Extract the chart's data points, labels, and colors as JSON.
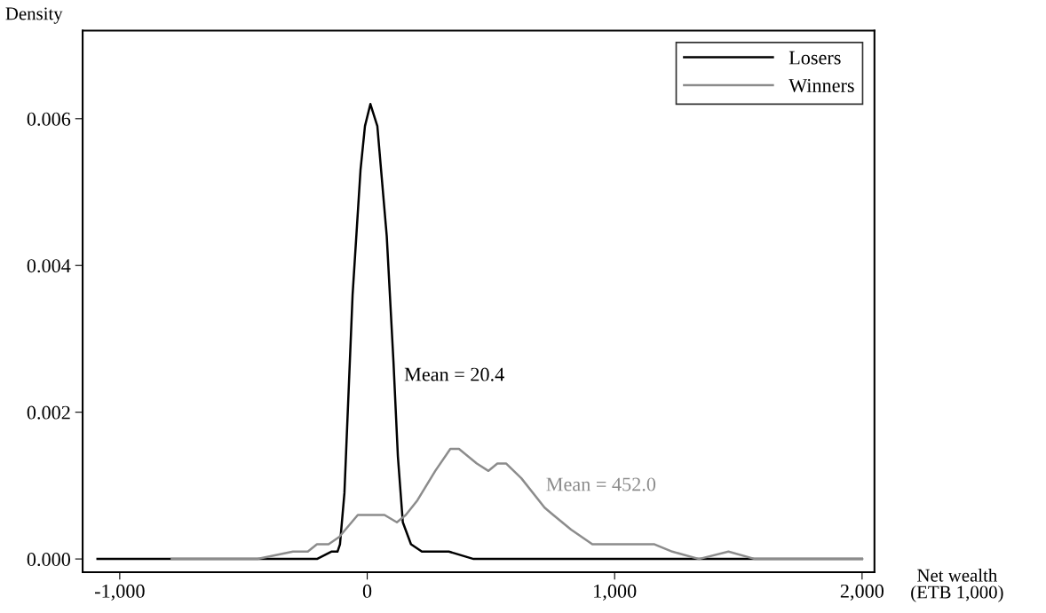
{
  "chart_data": {
    "type": "line",
    "xlabel": "Net wealth\n(ETB 1,000)",
    "ylabel": "Density",
    "xlim": [
      -1150,
      2050
    ],
    "ylim": [
      -0.00018,
      0.0072
    ],
    "xticks": [
      {
        "value": -1000,
        "label": "-1,000"
      },
      0,
      {
        "value": 1000,
        "label": "1,000"
      },
      {
        "value": 2000,
        "label": "2,000"
      }
    ],
    "yticks": [
      {
        "value": 0,
        "label": "0.000"
      },
      0.002,
      0.004,
      0.006
    ],
    "grid": false,
    "legend": "top right",
    "marker": "none",
    "line_style": "solid",
    "annotations": [
      "Mean = 20.4",
      "Mean = 452.0"
    ],
    "series": [
      {
        "name": "Losers",
        "color": "#000000",
        "x": [
          -1090,
          -800,
          -400,
          -325,
          -203,
          -145,
          -120,
          -110,
          -92,
          -59,
          -27,
          -9,
          13,
          41,
          79,
          106,
          124,
          144,
          177,
          221,
          330,
          430,
          700,
          1000,
          1500,
          2000
        ],
        "values": [
          0,
          0,
          0,
          0,
          0,
          0.0001,
          0.0001,
          0.0002,
          0.0009,
          0.0036,
          0.0053,
          0.0059,
          0.0062,
          0.0059,
          0.0044,
          0.0027,
          0.0014,
          0.0005,
          0.0002,
          0.0001,
          0.0001,
          0,
          0,
          0,
          0,
          0
        ]
      },
      {
        "name": "Winners",
        "color": "#8c8c8c",
        "x": [
          -790,
          -443,
          -300,
          -240,
          -203,
          -156,
          -113,
          -38,
          23,
          70,
          120,
          156,
          203,
          275,
          336,
          371,
          443,
          490,
          526,
          562,
          623,
          717,
          752,
          824,
          910,
          982,
          1058,
          1161,
          1233,
          1341,
          1460,
          1567,
          1747,
          1890,
          2000
        ],
        "values": [
          0,
          0,
          0.0001,
          0.0001,
          0.0002,
          0.0002,
          0.0003,
          0.0006,
          0.0006,
          0.0006,
          0.0005,
          0.0006,
          0.0008,
          0.0012,
          0.0015,
          0.0015,
          0.0013,
          0.0012,
          0.0013,
          0.0013,
          0.0011,
          0.0007,
          0.0006,
          0.0004,
          0.0002,
          0.0002,
          0.0002,
          0.0002,
          0.0001,
          0,
          0.0001,
          0,
          0,
          0,
          0
        ]
      }
    ]
  }
}
